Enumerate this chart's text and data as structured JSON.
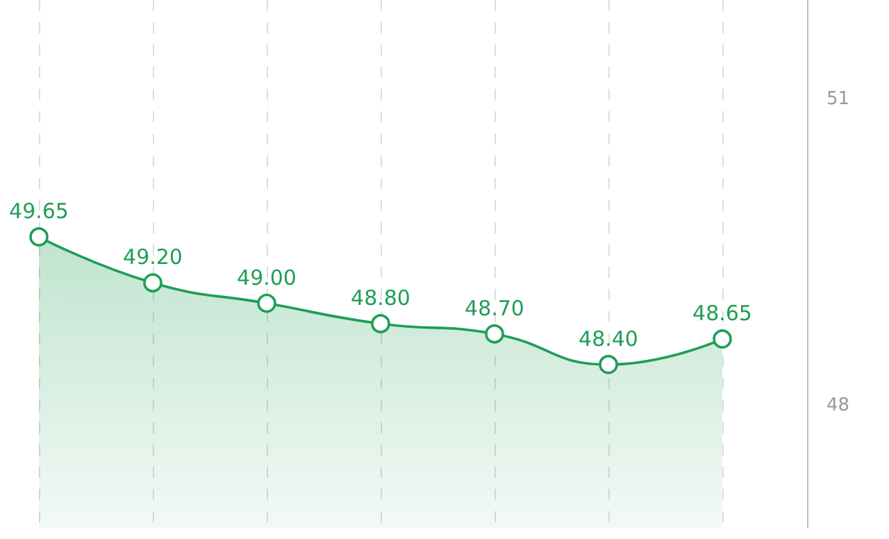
{
  "chart_data": {
    "type": "area",
    "categories": [
      null,
      null,
      null,
      null,
      null,
      null,
      null
    ],
    "series": [
      {
        "color": "#1e9e55",
        "values": [
          49.65,
          49.2,
          49.0,
          48.8,
          48.7,
          48.4,
          48.65
        ],
        "value_labels": [
          "49.65",
          "49.20",
          "49.00",
          "48.80",
          "48.70",
          "48.40",
          "48.65"
        ]
      }
    ],
    "ylim": [
      46.8,
      51.97
    ],
    "yticks": [
      48,
      51
    ],
    "grid": "x",
    "marker": "circle"
  }
}
